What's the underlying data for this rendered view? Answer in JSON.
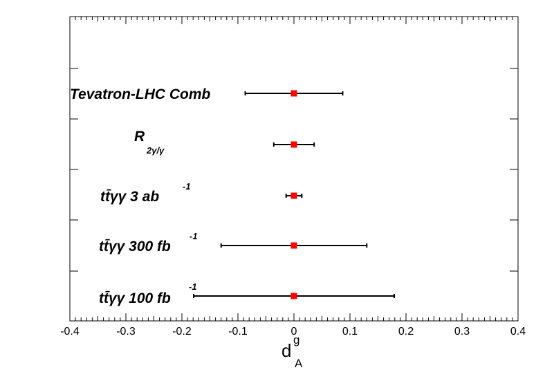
{
  "chart_data": {
    "type": "errorbar",
    "xlabel": {
      "main": "d",
      "sup": "g",
      "sub": "A"
    },
    "xlim": [
      -0.4,
      0.4
    ],
    "xticks": [
      -0.4,
      -0.3,
      -0.2,
      -0.1,
      0,
      0.1,
      0.2,
      0.3,
      0.4
    ],
    "xtick_labels": [
      "-0.4",
      "-0.3",
      "-0.2",
      "-0.1",
      "0",
      "0.1",
      "0.2",
      "0.3",
      "0.4"
    ],
    "marker_color": "#ff0000",
    "points": [
      {
        "label": "Tevatron-LHC Comb",
        "center": 0.0,
        "low": -0.087,
        "high": 0.087
      },
      {
        "label": "R",
        "label_sub": "2γ/γ",
        "center": 0.0,
        "low": -0.036,
        "high": 0.036
      },
      {
        "label": "tt̄γγ  3 ab",
        "label_sup": "-1",
        "center": 0.0,
        "low": -0.014,
        "high": 0.014
      },
      {
        "label": "tt̄γγ  300 fb",
        "label_sup": "-1",
        "center": 0.0,
        "low": -0.13,
        "high": 0.13
      },
      {
        "label": "tt̄γγ  100 fb",
        "label_sup": "-1",
        "center": 0.0,
        "low": -0.179,
        "high": 0.179
      }
    ]
  }
}
